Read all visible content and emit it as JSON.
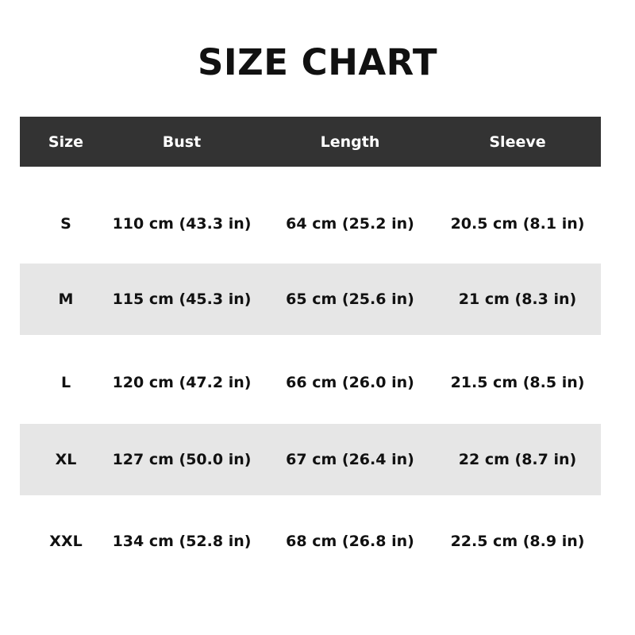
{
  "title": "SIZE CHART",
  "headers": [
    "Size",
    "Bust",
    "Length",
    "Sleeve"
  ],
  "rows": [
    [
      "S",
      "110 cm (43.3 in)",
      "64 cm (25.2 in)",
      "20.5 cm (8.1 in)"
    ],
    [
      "M",
      "115 cm (45.3 in)",
      "65 cm (25.6 in)",
      "21 cm (8.3 in)"
    ],
    [
      "L",
      "120 cm (47.2 in)",
      "66 cm (26.0 in)",
      "21.5 cm (8.5 in)"
    ],
    [
      "XL",
      "127 cm (50.0 in)",
      "67 cm (26.4 in)",
      "22 cm (8.7 in)"
    ],
    [
      "XXL",
      "134 cm (52.8 in)",
      "68 cm (26.8 in)",
      "22.5 cm (8.9 in)"
    ]
  ],
  "colors": {
    "header_bg": "#333333",
    "header_text": "#ffffff",
    "alt_row_bg": "#e6e6e6"
  }
}
